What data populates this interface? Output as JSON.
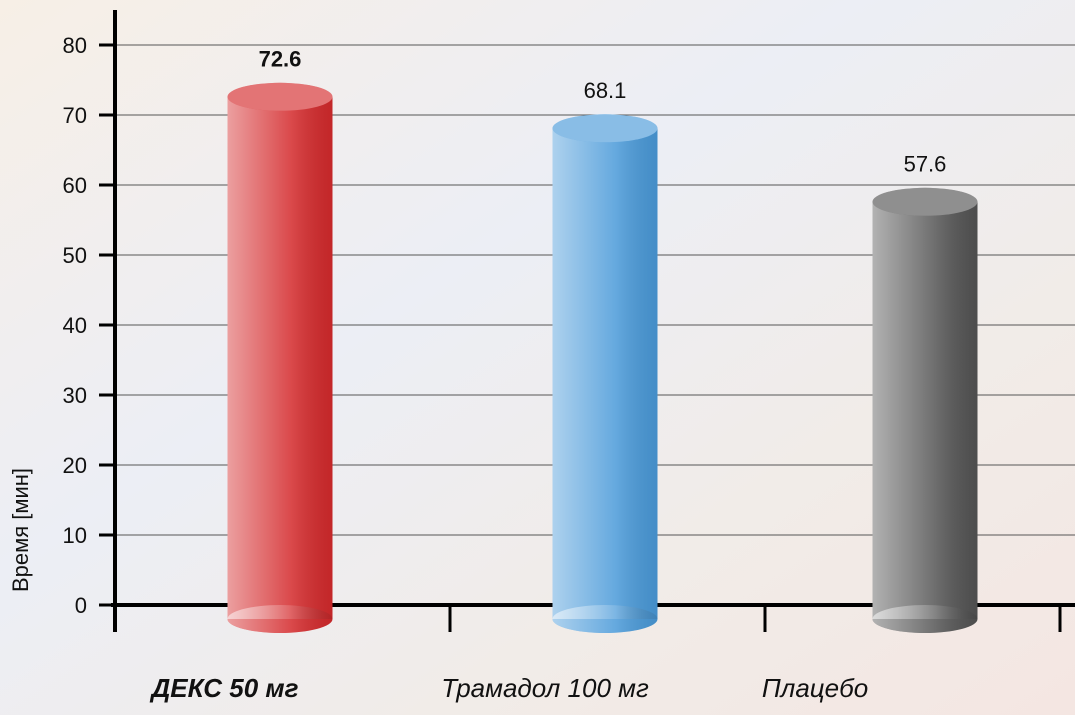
{
  "chart_data": {
    "type": "bar",
    "y_label": "Время [мин]",
    "categories": [
      "ДЕКС 50 мг",
      "Трамадол 100 мг",
      "Плацебо"
    ],
    "values": [
      72.6,
      68.1,
      57.6
    ],
    "colors": [
      "#d42a2c",
      "#4a9ad9",
      "#545454"
    ],
    "ylim": [
      0,
      80
    ],
    "yticks": [
      0,
      10,
      20,
      30,
      40,
      50,
      60,
      70,
      80
    ],
    "grid": true
  }
}
